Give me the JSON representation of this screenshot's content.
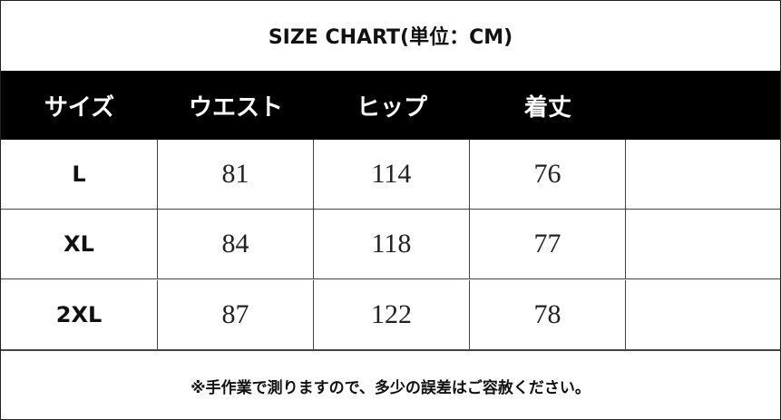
{
  "header": {
    "title": "SIZE CHART(単位：CM)"
  },
  "table": {
    "columns": [
      "サイズ",
      "ウエスト",
      "ヒップ",
      "着丈"
    ],
    "rows": [
      [
        "L",
        81,
        114,
        76
      ],
      [
        "XL",
        84,
        118,
        77
      ],
      [
        "2XL",
        87,
        122,
        78
      ]
    ]
  },
  "footer": {
    "note": "※手作業で測りますので、多少の誤差はご容赦ください。"
  }
}
